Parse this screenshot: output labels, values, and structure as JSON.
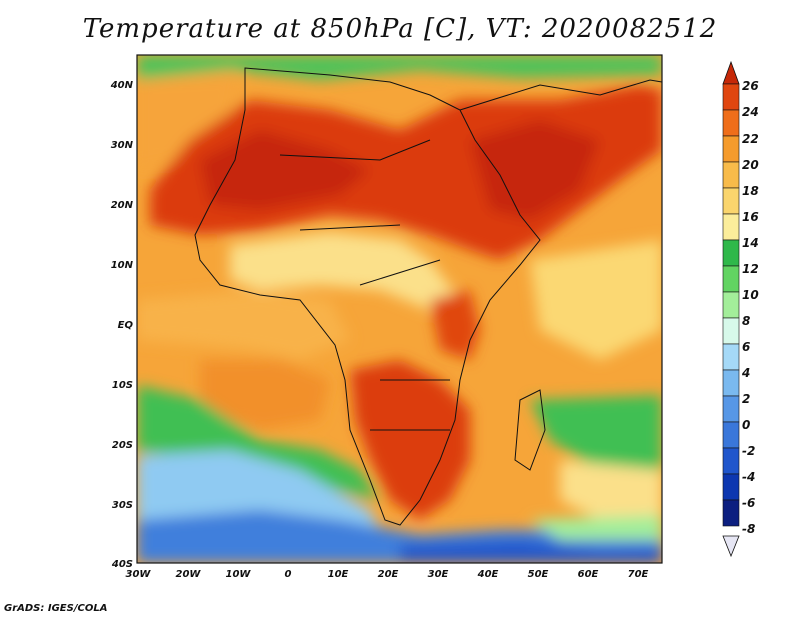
{
  "title": "Temperature at 850hPa [C], VT: 2020082512",
  "credit": "GrADS: IGES/COLA",
  "map": {
    "lat_labels": [
      "40N",
      "30N",
      "20N",
      "10N",
      "EQ",
      "10S",
      "20S",
      "30S",
      "40S"
    ],
    "lon_labels": [
      "30W",
      "20W",
      "10W",
      "0",
      "10E",
      "20E",
      "30E",
      "40E",
      "50E",
      "60E",
      "70E"
    ]
  },
  "colorbar": {
    "labels": [
      "26",
      "24",
      "22",
      "20",
      "18",
      "16",
      "14",
      "12",
      "10",
      "8",
      "6",
      "4",
      "2",
      "0",
      "-2",
      "-4",
      "-6",
      "-8"
    ],
    "colors": [
      "#c62808",
      "#e0460f",
      "#ef6e1a",
      "#f59b2c",
      "#f8bb4a",
      "#fad56d",
      "#fbed9b",
      "#2fb84a",
      "#62d462",
      "#a3ee9a",
      "#d7f9ea",
      "#a5d9f7",
      "#7ab9ef",
      "#5797e6",
      "#3a77da",
      "#2056cc",
      "#0d37b0",
      "#0c1f80"
    ]
  },
  "colors": {
    "hot": "#d72e08",
    "warm": "#f39a2a",
    "mild": "#fad27a",
    "green": "#54c85a",
    "cool": "#7fc0f0",
    "cold": "#2b6bd6"
  }
}
